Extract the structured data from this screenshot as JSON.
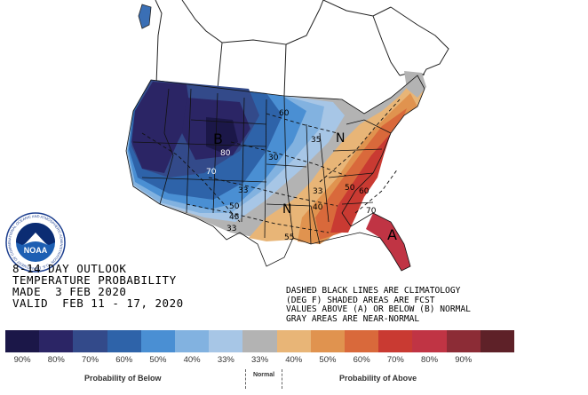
{
  "title": {
    "line1": "8-14 DAY OUTLOOK",
    "line2": "TEMPERATURE PROBABILITY",
    "line3": "MADE  3 FEB 2020",
    "line4": "VALID  FEB 11 - 17, 2020"
  },
  "notes": {
    "line1": "DASHED BLACK LINES ARE CLIMATOLOGY",
    "line2": "(DEG F) SHADED AREAS ARE FCST",
    "line3": "VALUES ABOVE (A) OR BELOW (B) NORMAL",
    "line4": "GRAY AREAS ARE NEAR-NORMAL"
  },
  "logo": {
    "text": "NOAA",
    "ring_text": "NATIONAL OCEANIC AND ATMOSPHERIC ADMINISTRATION · U.S. DEPARTMENT OF COMMERCE"
  },
  "legend": {
    "colors": [
      "#1b1748",
      "#2b2565",
      "#334a8a",
      "#2e63a9",
      "#4a8fd3",
      "#82b2e0",
      "#a7c6e6",
      "#b3b3b3",
      "#e8b577",
      "#e0934f",
      "#d9693b",
      "#c93a32",
      "#c03444",
      "#8c2c36",
      "#5e2128"
    ],
    "ticks": [
      "90%",
      "80%",
      "70%",
      "60%",
      "50%",
      "40%",
      "33%",
      "33%",
      "40%",
      "50%",
      "60%",
      "70%",
      "80%",
      "90%",
      ""
    ],
    "below_label": "Probability of Below",
    "normal_label": "Normal",
    "above_label": "Probability of Above"
  },
  "map_labels": {
    "B": "B",
    "A": "A",
    "N1": "N",
    "N2": "N",
    "c80": "80",
    "c70": "70",
    "c60": "60",
    "c50": "50",
    "c45": "45",
    "c35": "35",
    "c33a": "33",
    "c33b": "33",
    "c33c": "33",
    "c40": "40",
    "c50b": "50",
    "c60b": "60",
    "c70b": "70",
    "c30": "30",
    "c40b": "40",
    "c50c": "50",
    "c55": "55",
    "c35b": "35"
  }
}
